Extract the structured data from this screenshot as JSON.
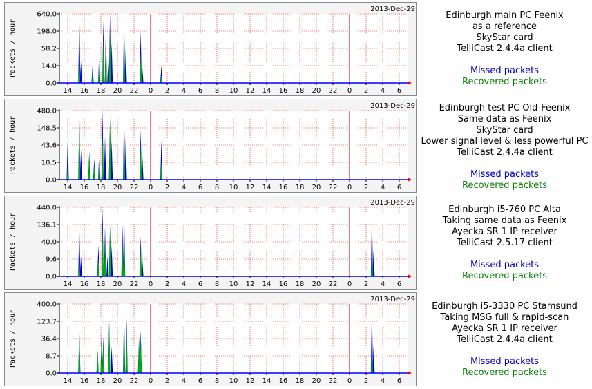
{
  "colors": {
    "missed": "#0000d0",
    "recovered": "#00b000",
    "grid": "#ff0000",
    "midnight": "#cc0000",
    "axis": "#000000",
    "panel_bg": "#f4f4f4"
  },
  "x_tick_labels": [
    "14",
    "16",
    "18",
    "20",
    "22",
    "0",
    "2",
    "4",
    "6",
    "8",
    "10",
    "12",
    "14",
    "16",
    "18",
    "20",
    "22",
    "0",
    "2",
    "4",
    "6"
  ],
  "ylabel": "Packets / hour",
  "date_label": "2013-Dec-29",
  "panels": [
    {
      "description": [
        "Edinburgh main PC Feenix",
        "as a reference",
        "SkyStar card",
        "TelliCast 2.4.4a client"
      ],
      "legend": {
        "missed": "Missed packets",
        "recovered": "Recovered packets"
      }
    },
    {
      "description": [
        "Edinburgh test PC Old-Feenix",
        "Same data as Feenix",
        "SkyStar card",
        "Lower signal level & less powerful PC",
        "TelliCast 2.4.4a client"
      ],
      "legend": {
        "missed": "Missed packets",
        "recovered": "Recovered packets"
      }
    },
    {
      "description": [
        "Edinburgh i5-760 PC Alta",
        "Taking same data as Feenix",
        "Ayecka SR 1 IP receiver",
        "TelliCast 2.5.17 client"
      ],
      "legend": {
        "missed": "Missed packets",
        "recovered": "Recovered packets"
      }
    },
    {
      "description": [
        "Edinburgh i5-3330 PC Stamsund",
        "Taking MSG full & rapid-scan",
        "Ayecka SR 1 IP receiver",
        "TelliCast 2.4.4a client"
      ],
      "legend": {
        "missed": "Missed packets",
        "recovered": "Recovered packets"
      }
    }
  ],
  "chart_data": [
    {
      "type": "area",
      "xlabel": "",
      "ylabel": "Packets / hour",
      "y_tick_labels": [
        "640.0",
        "198.0",
        "58.2",
        "14.0",
        "0.0"
      ],
      "x_range_hours": [
        13,
        55
      ],
      "series": [
        {
          "name": "Missed packets",
          "points": [
            [
              15.4,
              640
            ],
            [
              15.6,
              20
            ],
            [
              17.0,
              14
            ],
            [
              17.8,
              45
            ],
            [
              18.3,
              400
            ],
            [
              18.6,
              220
            ],
            [
              18.9,
              30
            ],
            [
              19.1,
              640
            ],
            [
              19.3,
              90
            ],
            [
              20.8,
              500
            ],
            [
              21.0,
              60
            ],
            [
              22.8,
              198
            ],
            [
              23.0,
              10
            ],
            [
              25.3,
              14
            ]
          ]
        },
        {
          "name": "Recovered packets",
          "points": [
            [
              15.4,
              30
            ],
            [
              17.0,
              5
            ],
            [
              17.8,
              20
            ],
            [
              18.3,
              120
            ],
            [
              18.6,
              200
            ],
            [
              19.1,
              250
            ],
            [
              20.8,
              200
            ],
            [
              22.8,
              40
            ],
            [
              25.3,
              2
            ]
          ]
        }
      ]
    },
    {
      "type": "area",
      "xlabel": "",
      "ylabel": "Packets / hour",
      "y_tick_labels": [
        "480.0",
        "148.5",
        "43.6",
        "10.5",
        "0.0"
      ],
      "x_range_hours": [
        13,
        55
      ],
      "series": [
        {
          "name": "Missed packets",
          "points": [
            [
              14.0,
              60
            ],
            [
              15.4,
              480
            ],
            [
              15.6,
              30
            ],
            [
              16.6,
              25
            ],
            [
              17.2,
              14
            ],
            [
              17.8,
              30
            ],
            [
              18.2,
              480
            ],
            [
              18.5,
              80
            ],
            [
              19.1,
              300
            ],
            [
              19.3,
              60
            ],
            [
              20.8,
              480
            ],
            [
              21.0,
              80
            ],
            [
              22.8,
              130
            ],
            [
              23.0,
              20
            ],
            [
              25.3,
              60
            ]
          ]
        },
        {
          "name": "Recovered packets",
          "points": [
            [
              14.0,
              10
            ],
            [
              15.4,
              200
            ],
            [
              16.6,
              25
            ],
            [
              17.2,
              8
            ],
            [
              17.8,
              12
            ],
            [
              18.2,
              100
            ],
            [
              19.1,
              300
            ],
            [
              20.8,
              120
            ],
            [
              22.8,
              50
            ],
            [
              25.3,
              12
            ]
          ]
        }
      ]
    },
    {
      "type": "area",
      "xlabel": "",
      "ylabel": "Packets / hour",
      "y_tick_labels": [
        "440.0",
        "136.1",
        "40.0",
        "9.6",
        "0.0"
      ],
      "x_range_hours": [
        13,
        55
      ],
      "series": [
        {
          "name": "Missed packets",
          "points": [
            [
              15.4,
              136
            ],
            [
              15.6,
              12
            ],
            [
              17.7,
              30
            ],
            [
              18.2,
              440
            ],
            [
              18.5,
              120
            ],
            [
              18.8,
              12
            ],
            [
              19.1,
              136
            ],
            [
              19.3,
              30
            ],
            [
              20.6,
              136
            ],
            [
              20.8,
              440
            ],
            [
              22.8,
              60
            ],
            [
              23.0,
              10
            ],
            [
              50.7,
              300
            ],
            [
              50.9,
              20
            ]
          ]
        },
        {
          "name": "Recovered packets",
          "points": [
            [
              15.4,
              10
            ],
            [
              17.7,
              10
            ],
            [
              18.2,
              136
            ],
            [
              18.5,
              40
            ],
            [
              19.1,
              120
            ],
            [
              20.6,
              40
            ],
            [
              20.8,
              60
            ],
            [
              22.8,
              30
            ],
            [
              50.7,
              40
            ]
          ]
        }
      ]
    },
    {
      "type": "area",
      "xlabel": "",
      "ylabel": "Packets / hour",
      "y_tick_labels": [
        "400.0",
        "123.7",
        "36.4",
        "8.7",
        "0.0"
      ],
      "x_range_hours": [
        13,
        55
      ],
      "series": [
        {
          "name": "Missed packets",
          "points": [
            [
              15.4,
              70
            ],
            [
              17.6,
              14
            ],
            [
              18.1,
              80
            ],
            [
              18.3,
              40
            ],
            [
              19.0,
              120
            ],
            [
              19.3,
              20
            ],
            [
              20.8,
              250
            ],
            [
              21.1,
              150
            ],
            [
              22.6,
              40
            ],
            [
              22.8,
              70
            ],
            [
              50.7,
              400
            ],
            [
              50.9,
              20
            ]
          ]
        },
        {
          "name": "Recovered packets",
          "points": [
            [
              15.4,
              60
            ],
            [
              17.6,
              10
            ],
            [
              18.1,
              60
            ],
            [
              18.3,
              40
            ],
            [
              19.0,
              110
            ],
            [
              20.8,
              100
            ],
            [
              21.1,
              60
            ],
            [
              22.6,
              30
            ],
            [
              22.8,
              50
            ],
            [
              50.7,
              30
            ]
          ]
        }
      ]
    }
  ]
}
